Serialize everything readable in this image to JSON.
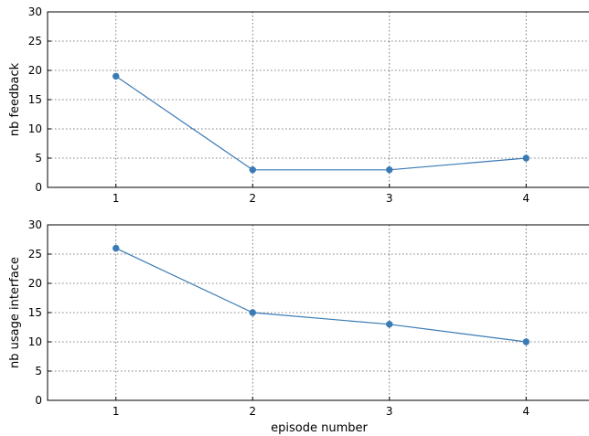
{
  "chart_data": [
    {
      "type": "line",
      "title": "",
      "xlabel": "",
      "ylabel": "nb feedback",
      "x": [
        1,
        2,
        3,
        4
      ],
      "xticks": [
        "1",
        "2",
        "3",
        "4"
      ],
      "xlim": [
        0.5,
        4.5
      ],
      "ylim": [
        0,
        30
      ],
      "yticks": [
        "0",
        "5",
        "10",
        "15",
        "20",
        "25",
        "30"
      ],
      "grid": true,
      "series": [
        {
          "values": [
            19,
            3,
            3,
            5
          ],
          "color": "#3a7ab5"
        }
      ]
    },
    {
      "type": "line",
      "title": "",
      "xlabel": "episode number",
      "ylabel": "nb usage interface",
      "x": [
        1,
        2,
        3,
        4
      ],
      "xticks": [
        "1",
        "2",
        "3",
        "4"
      ],
      "xlim": [
        0.5,
        4.5
      ],
      "ylim": [
        0,
        30
      ],
      "yticks": [
        "0",
        "5",
        "10",
        "15",
        "20",
        "25",
        "30"
      ],
      "grid": true,
      "series": [
        {
          "values": [
            26,
            15,
            13,
            10
          ],
          "color": "#3a7ab5"
        }
      ]
    }
  ]
}
